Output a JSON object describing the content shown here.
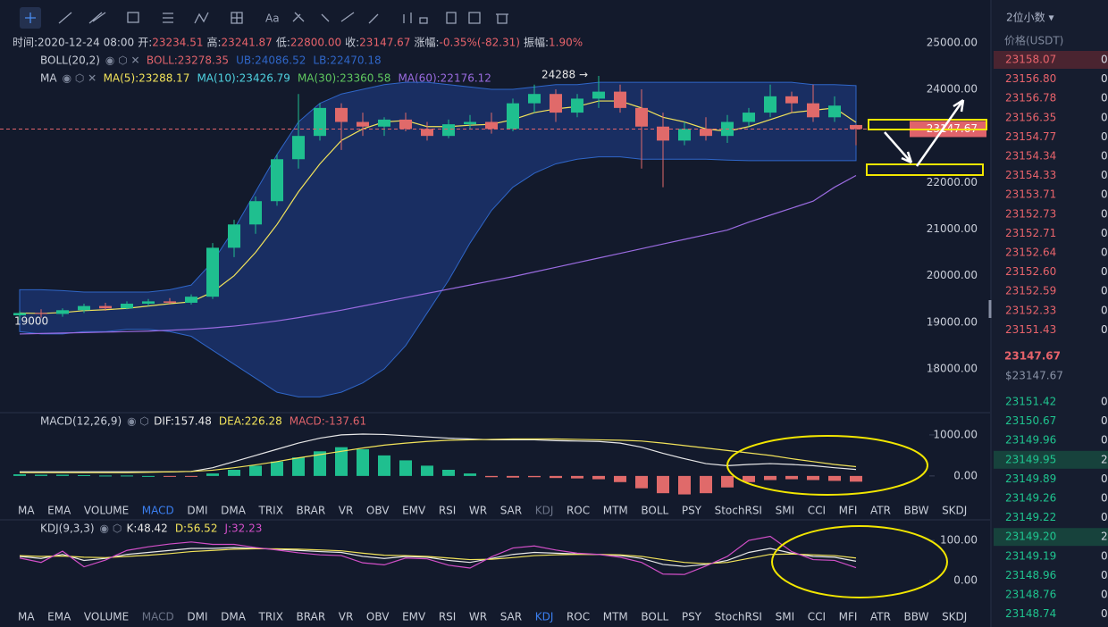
{
  "toolbar": {
    "decimals": "2位小数 ▾"
  },
  "info": [
    {
      "label": "时间:",
      "value": "2020-12-24 08:00"
    },
    {
      "label": "开:",
      "value": "23234.51"
    },
    {
      "label": "高:",
      "value": "23241.87"
    },
    {
      "label": "低:",
      "value": "22800.00"
    },
    {
      "label": "收:",
      "value": "23147.67"
    },
    {
      "label": "涨幅:",
      "value": "-0.35%(-82.31)"
    },
    {
      "label": "振幅:",
      "value": "1.90%"
    }
  ],
  "chart_data": [
    {
      "type": "candlestick",
      "up_color": "#1fbf8f",
      "down_color": "#e06a6a",
      "band_color": "#1f3f8f",
      "indicators": [
        {
          "name": "BOLL(20,2)",
          "items": [
            {
              "text": "BOLL:23278.35",
              "color": "#e0636b"
            },
            {
              "text": "UB:24086.52",
              "color": "#2f66c8"
            },
            {
              "text": "LB:22470.18",
              "color": "#2f66c8"
            }
          ]
        },
        {
          "name": "MA",
          "items": [
            {
              "text": "MA(5):23288.17",
              "color": "#f2e35a"
            },
            {
              "text": "MA(10):23426.79",
              "color": "#4fd2e0"
            },
            {
              "text": "MA(30):23360.58",
              "color": "#5fc85f"
            },
            {
              "text": "MA(60):22176.12",
              "color": "#9a6be0"
            }
          ]
        }
      ],
      "peak_label": "24288 →",
      "low_label": "19000",
      "price_label": "23147.67",
      "open": [
        19150,
        19200,
        19180,
        19260,
        19350,
        19300,
        19400,
        19450,
        19420,
        19550,
        20600,
        21100,
        21600,
        22500,
        23000,
        23600,
        23300,
        23200,
        23350,
        23150,
        23000,
        23250,
        23300,
        23150,
        23700,
        23900,
        23500,
        23800,
        23950,
        23600,
        23200,
        22900,
        23150,
        23000,
        23300,
        23500,
        23850,
        23700,
        23400,
        23234.51
      ],
      "high": [
        19250,
        19280,
        19300,
        19400,
        19420,
        19450,
        19500,
        19520,
        19600,
        20700,
        21200,
        21700,
        22600,
        23900,
        23700,
        23700,
        23500,
        23400,
        23500,
        23300,
        23350,
        23450,
        23500,
        23800,
        24100,
        24000,
        23900,
        24288,
        24100,
        24000,
        23500,
        23300,
        23400,
        23450,
        23600,
        24100,
        23950,
        24100,
        23850,
        23241.87
      ],
      "low": [
        19050,
        19100,
        19120,
        19200,
        19250,
        19280,
        19350,
        19380,
        19380,
        19500,
        20400,
        20900,
        21500,
        22300,
        22900,
        22700,
        23000,
        23000,
        23100,
        22900,
        22950,
        23150,
        23050,
        23100,
        23500,
        23300,
        23400,
        23600,
        23500,
        22300,
        21900,
        22800,
        22900,
        22850,
        23200,
        23400,
        23500,
        23300,
        23300,
        22800
      ],
      "close": [
        19200,
        19180,
        19260,
        19350,
        19300,
        19400,
        19450,
        19420,
        19550,
        20600,
        21100,
        21600,
        22500,
        23000,
        23600,
        23300,
        23200,
        23350,
        23150,
        23000,
        23250,
        23300,
        23150,
        23700,
        23900,
        23500,
        23800,
        23950,
        23600,
        23200,
        22900,
        23150,
        23000,
        23300,
        23500,
        23850,
        23700,
        23400,
        23650,
        23147.67
      ],
      "band_upper": [
        19700,
        19700,
        19680,
        19650,
        19650,
        19650,
        19650,
        19700,
        19800,
        20300,
        21000,
        21800,
        22600,
        23300,
        23700,
        23900,
        24000,
        24100,
        24150,
        24150,
        24100,
        24050,
        24000,
        24000,
        24050,
        24100,
        24100,
        24150,
        24150,
        24150,
        24150,
        24150,
        24150,
        24150,
        24150,
        24150,
        24150,
        24100,
        24100,
        24080
      ],
      "band_lower": [
        18800,
        18750,
        18750,
        18800,
        18800,
        18850,
        18850,
        18800,
        18700,
        18400,
        18100,
        17800,
        17500,
        17400,
        17400,
        17500,
        17700,
        18000,
        18500,
        19200,
        19900,
        20700,
        21400,
        21900,
        22200,
        22400,
        22500,
        22550,
        22550,
        22500,
        22500,
        22500,
        22500,
        22480,
        22470,
        22470,
        22470,
        22470,
        22470,
        22470
      ],
      "series": [
        {
          "color": "#f2e35a",
          "values": [
            19200,
            19190,
            19210,
            19250,
            19270,
            19300,
            19350,
            19400,
            19440,
            19650,
            20000,
            20500,
            21100,
            21800,
            22400,
            22900,
            23150,
            23300,
            23330,
            23200,
            23200,
            23230,
            23250,
            23350,
            23500,
            23580,
            23630,
            23750,
            23750,
            23600,
            23400,
            23300,
            23150,
            23100,
            23200,
            23350,
            23500,
            23550,
            23600,
            23290
          ]
        },
        {
          "color": "#9a6be0",
          "values": [
            18750,
            18760,
            18770,
            18780,
            18790,
            18800,
            18810,
            18830,
            18850,
            18880,
            18920,
            18970,
            19030,
            19100,
            19180,
            19260,
            19350,
            19440,
            19530,
            19620,
            19710,
            19800,
            19890,
            19980,
            20080,
            20180,
            20280,
            20380,
            20480,
            20580,
            20680,
            20780,
            20880,
            20980,
            21150,
            21300,
            21450,
            21600,
            21900,
            22150
          ]
        }
      ],
      "ylim": [
        17100,
        25150
      ],
      "grid": false,
      "yticks": [
        {
          "value": 25000,
          "label": "25000.00"
        },
        {
          "value": 24000,
          "label": "24000.00"
        },
        {
          "value": 22000,
          "label": "22000.00"
        },
        {
          "value": 21000,
          "label": "21000.00"
        },
        {
          "value": 20000,
          "label": "20000.00"
        },
        {
          "value": 19000,
          "label": "19000.00"
        },
        {
          "value": 18000,
          "label": "18000.00"
        }
      ]
    },
    {
      "type": "bar",
      "up_color": "#1fbf8f",
      "down_color": "#e06a6a",
      "indicators": [
        {
          "name": "MACD(12,26,9)",
          "items": [
            {
              "text": "DIF:157.48",
              "color": "#e8e8e8"
            },
            {
              "text": "DEA:226.28",
              "color": "#f2e35a"
            },
            {
              "text": "MACD:-137.61",
              "color": "#e0636b"
            }
          ]
        }
      ],
      "values": [
        40,
        30,
        30,
        20,
        10,
        10,
        0,
        -20,
        -10,
        60,
        150,
        250,
        350,
        450,
        600,
        700,
        650,
        500,
        380,
        250,
        150,
        60,
        -30,
        -40,
        -30,
        -50,
        -60,
        -80,
        -150,
        -300,
        -420,
        -450,
        -420,
        -280,
        -150,
        -100,
        -80,
        -100,
        -120,
        -140
      ],
      "series": [
        {
          "color": "#e8e8e8",
          "values": [
            100,
            100,
            100,
            100,
            100,
            100,
            100,
            100,
            110,
            200,
            350,
            500,
            650,
            800,
            920,
            1000,
            1020,
            1010,
            980,
            950,
            920,
            900,
            880,
            880,
            880,
            860,
            850,
            840,
            800,
            700,
            550,
            420,
            300,
            250,
            280,
            300,
            280,
            250,
            200,
            157
          ]
        },
        {
          "color": "#f2e35a",
          "values": [
            80,
            80,
            80,
            80,
            80,
            80,
            90,
            100,
            110,
            140,
            200,
            270,
            350,
            440,
            520,
            600,
            680,
            750,
            800,
            840,
            870,
            880,
            890,
            900,
            900,
            900,
            890,
            880,
            870,
            850,
            800,
            740,
            680,
            620,
            560,
            500,
            420,
            350,
            280,
            226
          ]
        }
      ],
      "ylim": [
        -590,
        1520
      ],
      "yticks": [
        {
          "value": 1000,
          "label": "1000.00"
        },
        {
          "value": 0,
          "label": "0.00"
        }
      ]
    },
    {
      "type": "line",
      "indicators": [
        {
          "name": "KDJ(9,3,3)",
          "items": [
            {
              "text": "K:48.42",
              "color": "#e8e8e8"
            },
            {
              "text": "D:56.52",
              "color": "#f2e35a"
            },
            {
              "text": "J:32.23",
              "color": "#d24fc8"
            }
          ]
        }
      ],
      "series": [
        {
          "color": "#e8e8e8",
          "values": [
            60,
            55,
            65,
            50,
            55,
            65,
            70,
            75,
            80,
            80,
            82,
            80,
            78,
            75,
            72,
            70,
            60,
            55,
            60,
            58,
            50,
            45,
            55,
            65,
            70,
            68,
            66,
            65,
            62,
            55,
            40,
            35,
            40,
            50,
            70,
            80,
            68,
            60,
            58,
            48
          ]
        },
        {
          "color": "#f2e35a",
          "values": [
            62,
            60,
            61,
            58,
            57,
            60,
            63,
            67,
            72,
            75,
            78,
            79,
            79,
            78,
            76,
            74,
            68,
            63,
            62,
            60,
            56,
            52,
            53,
            57,
            62,
            64,
            65,
            65,
            64,
            60,
            52,
            45,
            42,
            45,
            55,
            65,
            66,
            64,
            62,
            56
          ]
        },
        {
          "color": "#d24fc8",
          "values": [
            56,
            45,
            73,
            34,
            51,
            75,
            84,
            91,
            96,
            90,
            90,
            82,
            76,
            69,
            64,
            62,
            44,
            39,
            56,
            54,
            38,
            31,
            59,
            81,
            86,
            76,
            68,
            65,
            58,
            45,
            16,
            15,
            36,
            60,
            100,
            110,
            72,
            52,
            50,
            32
          ]
        }
      ],
      "ylim": [
        -67,
        149
      ],
      "yticks": [
        {
          "value": 100,
          "label": "100.00"
        },
        {
          "value": 0,
          "label": "0.00"
        }
      ]
    }
  ],
  "indicator_tabs": [
    "MA",
    "EMA",
    "VOLUME",
    "MACD",
    "DMI",
    "DMA",
    "TRIX",
    "BRAR",
    "VR",
    "OBV",
    "EMV",
    "RSI",
    "WR",
    "SAR",
    "KDJ",
    "ROC",
    "MTM",
    "BOLL",
    "PSY",
    "StochRSI",
    "SMI",
    "CCI",
    "MFI",
    "ATR",
    "BBW",
    "SKDJ"
  ],
  "tab_rows": [
    {
      "active": 3,
      "muted": 14
    },
    {
      "active": 14,
      "muted": 3
    }
  ],
  "orderbook": {
    "header": "价格(USDT)",
    "asks": [
      {
        "price": "23158.07",
        "amount": "0"
      },
      {
        "price": "23156.80",
        "amount": "0"
      },
      {
        "price": "23156.78",
        "amount": "0"
      },
      {
        "price": "23156.35",
        "amount": "0"
      },
      {
        "price": "23154.77",
        "amount": "0"
      },
      {
        "price": "23154.34",
        "amount": "0"
      },
      {
        "price": "23154.33",
        "amount": "0"
      },
      {
        "price": "23153.71",
        "amount": "0"
      },
      {
        "price": "23152.73",
        "amount": "0"
      },
      {
        "price": "23152.71",
        "amount": "0"
      },
      {
        "price": "23152.64",
        "amount": "0"
      },
      {
        "price": "23152.60",
        "amount": "0"
      },
      {
        "price": "23152.59",
        "amount": "0"
      },
      {
        "price": "23152.33",
        "amount": "0"
      },
      {
        "price": "23151.43",
        "amount": "0"
      }
    ],
    "last": "23147.67",
    "last_usd": "$23147.67",
    "bids": [
      {
        "price": "23151.42",
        "amount": "0"
      },
      {
        "price": "23150.67",
        "amount": "0"
      },
      {
        "price": "23149.96",
        "amount": "0"
      },
      {
        "price": "23149.95",
        "amount": "2"
      },
      {
        "price": "23149.89",
        "amount": "0"
      },
      {
        "price": "23149.26",
        "amount": "0"
      },
      {
        "price": "23149.22",
        "amount": "0"
      },
      {
        "price": "23149.20",
        "amount": "2"
      },
      {
        "price": "23149.19",
        "amount": "0"
      },
      {
        "price": "23148.96",
        "amount": "0"
      },
      {
        "price": "23148.76",
        "amount": "0"
      },
      {
        "price": "23148.74",
        "amount": "0"
      }
    ]
  }
}
